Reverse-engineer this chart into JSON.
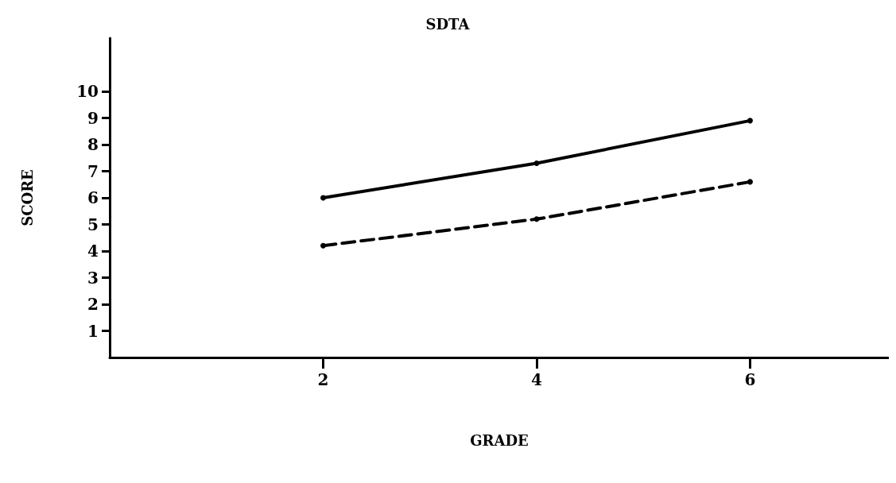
{
  "chart_data": {
    "type": "line",
    "title": "SDTA",
    "xlabel": "GRADE",
    "ylabel": "SCORE",
    "x": [
      2,
      4,
      6
    ],
    "series": [
      {
        "color": "#000000",
        "line_style": "solid",
        "values": [
          6.0,
          7.3,
          8.9
        ]
      },
      {
        "color": "#000000",
        "line_style": "dashed",
        "values": [
          4.2,
          5.2,
          6.6
        ]
      }
    ],
    "xlim": [
      0,
      7.3
    ],
    "xticks": [
      2,
      4,
      6
    ],
    "ylim": [
      0,
      12
    ],
    "yticks": [
      1,
      2,
      3,
      4,
      5,
      6,
      7,
      8,
      9,
      10
    ],
    "grid": false,
    "marker": "circle"
  }
}
